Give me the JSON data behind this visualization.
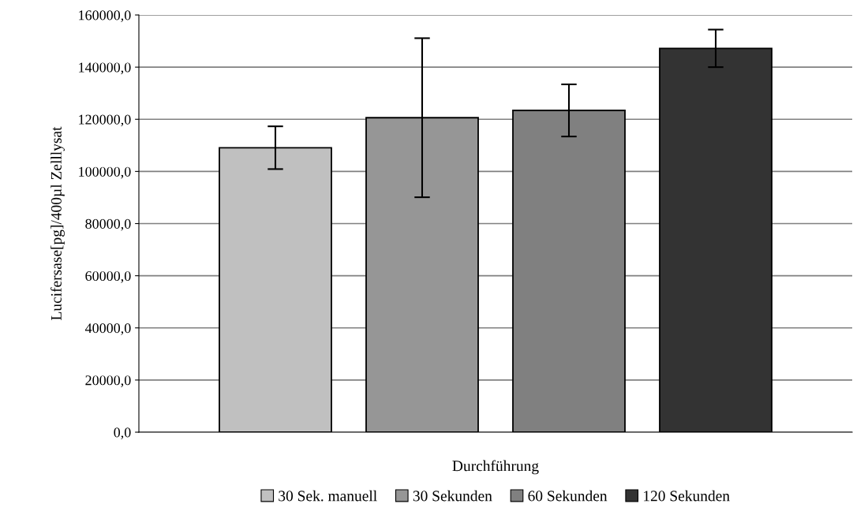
{
  "chart_data": {
    "type": "bar",
    "categories": [
      null
    ],
    "xlabel": "Durchführung",
    "ylabel": "Lucifersase[pg]/400µl Zelllysat",
    "series": [
      {
        "name": "30 Sek. manuell",
        "color": "#c0c0c0",
        "values": [
          109100
        ],
        "errors": [
          8200
        ]
      },
      {
        "name": "30 Sekunden",
        "color": "#969696",
        "values": [
          120600
        ],
        "errors": [
          30500
        ]
      },
      {
        "name": "60 Sekunden",
        "color": "#808080",
        "values": [
          123400
        ],
        "errors": [
          10000
        ]
      },
      {
        "name": "120 Sekunden",
        "color": "#333333",
        "values": [
          147200
        ],
        "errors": [
          7200
        ]
      }
    ],
    "ylim": [
      0,
      160000
    ],
    "yticks": [
      {
        "value": 0,
        "label": "0,0"
      },
      {
        "value": 20000,
        "label": "20000,0"
      },
      {
        "value": 40000,
        "label": "40000,0"
      },
      {
        "value": 60000,
        "label": "60000,0"
      },
      {
        "value": 80000,
        "label": "80000,0"
      },
      {
        "value": 100000,
        "label": "100000,0"
      },
      {
        "value": 120000,
        "label": "120000,0"
      },
      {
        "value": 140000,
        "label": "140000,0"
      },
      {
        "value": 160000,
        "label": "160000,0"
      }
    ],
    "grid": "y",
    "legend": "bottom"
  }
}
